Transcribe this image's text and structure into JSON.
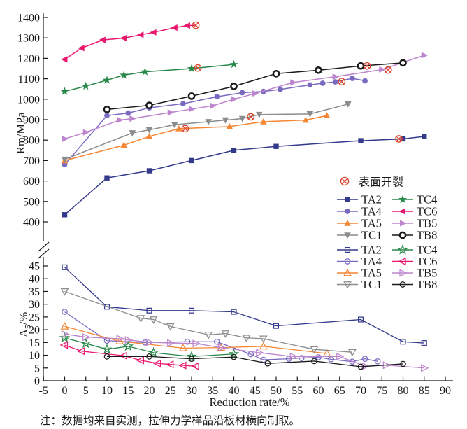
{
  "figure": {
    "xlabel": "Reduction rate/%",
    "ylabel_top": {
      "pre": "Rm",
      "sub": "",
      "post": "/MPa"
    },
    "ylabel_bottom": {
      "pre": "A",
      "sub": "5",
      "post": "/%"
    },
    "note": "注：数据均来自实测，拉伸力学样品沿板材横向制取。",
    "crack_legend_label": "表面开裂",
    "crack_color": "#d9452c",
    "axis_color": "#1a1a1a"
  },
  "legend": {
    "columns": [
      [
        "TA2",
        "TA4",
        "TA5",
        "TC1"
      ],
      [
        "TC4",
        "TC6",
        "TB5",
        "TB8"
      ]
    ]
  },
  "chart_data": [
    {
      "type": "line",
      "title": "Rm vs reduction rate (tensile strength, filled markers)",
      "xlabel": "Reduction rate/%",
      "ylabel": "Rm/MPa",
      "xlim": [
        -5,
        90
      ],
      "ylim": [
        400,
        1400
      ],
      "xtick_step": 5,
      "ytick_step": 100,
      "grid": false,
      "style": "filled",
      "series": [
        {
          "name": "TA2",
          "marker": "square",
          "color": "#333a8c",
          "points": [
            [
              0,
              435
            ],
            [
              10,
              615
            ],
            [
              20,
              650
            ],
            [
              30,
              700
            ],
            [
              40,
              750
            ],
            [
              50,
              769
            ],
            [
              70,
              797
            ],
            [
              80,
              806
            ],
            [
              85,
              818
            ]
          ],
          "crack": [
            79,
            806
          ]
        },
        {
          "name": "TA4",
          "marker": "circle",
          "color": "#7a6bc0",
          "points": [
            [
              0,
              680
            ],
            [
              10,
              920
            ],
            [
              15,
              932
            ],
            [
              20,
              958
            ],
            [
              28,
              978
            ],
            [
              36,
              1012
            ],
            [
              42,
              1032
            ],
            [
              47,
              1038
            ],
            [
              51,
              1048
            ],
            [
              58,
              1070
            ],
            [
              61,
              1078
            ],
            [
              64,
              1085
            ],
            [
              68,
              1102
            ],
            [
              71,
              1090
            ]
          ],
          "crack": [
            65.5,
            1086
          ]
        },
        {
          "name": "TA5",
          "marker": "triangle-up",
          "color": "#f58634",
          "points": [
            [
              0,
              700
            ],
            [
              14,
              775
            ],
            [
              20,
              818
            ],
            [
              27,
              856
            ],
            [
              39,
              866
            ],
            [
              47,
              890
            ],
            [
              57,
              898
            ],
            [
              62,
              920
            ]
          ],
          "crack": [
            28.5,
            856
          ]
        },
        {
          "name": "TC1",
          "marker": "triangle-down",
          "color": "#8a8c8e",
          "points": [
            [
              0,
              706
            ],
            [
              16,
              835
            ],
            [
              20,
              850
            ],
            [
              26,
              875
            ],
            [
              34,
              890
            ],
            [
              38,
              898
            ],
            [
              42,
              905
            ],
            [
              46,
              925
            ],
            [
              58,
              928
            ],
            [
              67,
              976
            ]
          ],
          "crack": [
            44,
            914
          ]
        },
        {
          "name": "TC4",
          "marker": "star",
          "color": "#28884a",
          "points": [
            [
              0,
              1038
            ],
            [
              5,
              1064
            ],
            [
              10,
              1093
            ],
            [
              14,
              1118
            ],
            [
              19,
              1134
            ],
            [
              30,
              1150
            ],
            [
              40,
              1170
            ]
          ],
          "crack": [
            31.5,
            1153
          ]
        },
        {
          "name": "TC6",
          "marker": "triangle-left",
          "color": "#e9186f",
          "points": [
            [
              0,
              1195
            ],
            [
              4,
              1250
            ],
            [
              9,
              1290
            ],
            [
              14,
              1299
            ],
            [
              18,
              1315
            ],
            [
              21,
              1327
            ],
            [
              26,
              1350
            ],
            [
              29,
              1360
            ]
          ],
          "crack": [
            31,
            1362
          ],
          "line_to_crack": true
        },
        {
          "name": "TB5",
          "marker": "triangle-right",
          "color": "#bc85cd",
          "points": [
            [
              0,
              806
            ],
            [
              5,
              838
            ],
            [
              13,
              898
            ],
            [
              16,
              905
            ],
            [
              25,
              935
            ],
            [
              30,
              952
            ],
            [
              35,
              968
            ],
            [
              40,
              1000
            ],
            [
              45,
              1028
            ],
            [
              54,
              1082
            ],
            [
              64,
              1110
            ],
            [
              75,
              1145
            ],
            [
              85,
              1215
            ]
          ],
          "crack": [
            76.5,
            1143
          ]
        },
        {
          "name": "TB8",
          "marker": "donut",
          "color": "#1a1a1a",
          "points": [
            [
              10,
              950
            ],
            [
              20,
              970
            ],
            [
              30,
              1015
            ],
            [
              40,
              1063
            ],
            [
              50,
              1125
            ],
            [
              60,
              1142
            ],
            [
              70,
              1163
            ],
            [
              80,
              1178
            ]
          ],
          "crack": [
            71.5,
            1163
          ]
        }
      ]
    },
    {
      "type": "line",
      "title": "A5 vs reduction rate (elongation, open markers)",
      "xlabel": "Reduction rate/%",
      "ylabel": "A5/%",
      "xlim": [
        -5,
        90
      ],
      "ylim": [
        0,
        45
      ],
      "xtick_step": 5,
      "ytick_step": 5,
      "grid": false,
      "style": "open",
      "series": [
        {
          "name": "TA2",
          "marker": "square",
          "color": "#333a8c",
          "points": [
            [
              0,
              44.5
            ],
            [
              10,
              29
            ],
            [
              20,
              27.5
            ],
            [
              30,
              27.5
            ],
            [
              40,
              27
            ],
            [
              50,
              21.5
            ],
            [
              70,
              24
            ],
            [
              80,
              15.3
            ],
            [
              85,
              14.8
            ]
          ]
        },
        {
          "name": "TA4",
          "marker": "circle",
          "color": "#7a6bc0",
          "points": [
            [
              0,
              27
            ],
            [
              10,
              15.7
            ],
            [
              19,
              15
            ],
            [
              29,
              15.3
            ],
            [
              36,
              15.3
            ],
            [
              44,
              10.4
            ],
            [
              47,
              8.2
            ],
            [
              53,
              8.6
            ],
            [
              56,
              8.9
            ],
            [
              60,
              9.2
            ],
            [
              63,
              8.4
            ],
            [
              68,
              7.5
            ],
            [
              71,
              8.6
            ],
            [
              74,
              7.6
            ]
          ]
        },
        {
          "name": "TA5",
          "marker": "triangle-up",
          "color": "#f58634",
          "points": [
            [
              0,
              21.3
            ],
            [
              13,
              15.5
            ],
            [
              28,
              12.8
            ],
            [
              37,
              13
            ],
            [
              47,
              13.5
            ],
            [
              62,
              10.7
            ]
          ]
        },
        {
          "name": "TC1",
          "marker": "triangle-down",
          "color": "#8a8c8e",
          "points": [
            [
              0,
              35
            ],
            [
              18,
              24.5
            ],
            [
              21,
              24
            ],
            [
              25,
              21.3
            ],
            [
              34,
              18
            ],
            [
              38,
              18.5
            ],
            [
              43,
              16.8
            ],
            [
              47,
              16.5
            ],
            [
              59,
              12.3
            ],
            [
              68,
              11.2
            ]
          ]
        },
        {
          "name": "TC4",
          "marker": "star",
          "color": "#28884a",
          "points": [
            [
              0,
              16.8
            ],
            [
              5,
              14.6
            ],
            [
              10,
              12.3
            ],
            [
              15,
              13.5
            ],
            [
              21,
              11
            ],
            [
              30,
              9.5
            ],
            [
              40,
              10.5
            ]
          ]
        },
        {
          "name": "TC6",
          "marker": "triangle-left",
          "color": "#e9186f",
          "points": [
            [
              0,
              14
            ],
            [
              4,
              11.6
            ],
            [
              14,
              9.8
            ],
            [
              18,
              8
            ],
            [
              22,
              6.8
            ],
            [
              25,
              6.4
            ],
            [
              28,
              6
            ],
            [
              31,
              5.7
            ]
          ]
        },
        {
          "name": "TB5",
          "marker": "triangle-right",
          "color": "#bc85cd",
          "points": [
            [
              0,
              18.3
            ],
            [
              5,
              17.1
            ],
            [
              13,
              16.5
            ],
            [
              15,
              16
            ],
            [
              20,
              15.1
            ],
            [
              25,
              14.8
            ],
            [
              31,
              14.6
            ],
            [
              37,
              13
            ],
            [
              46,
              11
            ],
            [
              54,
              9.5
            ],
            [
              65,
              9.5
            ],
            [
              71,
              5.7
            ],
            [
              76,
              6.1
            ],
            [
              85,
              5
            ]
          ]
        },
        {
          "name": "TB8",
          "marker": "circle",
          "color": "#1a1a1a",
          "points": [
            [
              10,
              9.5
            ],
            [
              20,
              9.5
            ],
            [
              30,
              8.6
            ],
            [
              40,
              9.3
            ],
            [
              48,
              6.8
            ],
            [
              59,
              7.7
            ],
            [
              70,
              5.5
            ],
            [
              80,
              6.6
            ]
          ]
        }
      ]
    }
  ]
}
